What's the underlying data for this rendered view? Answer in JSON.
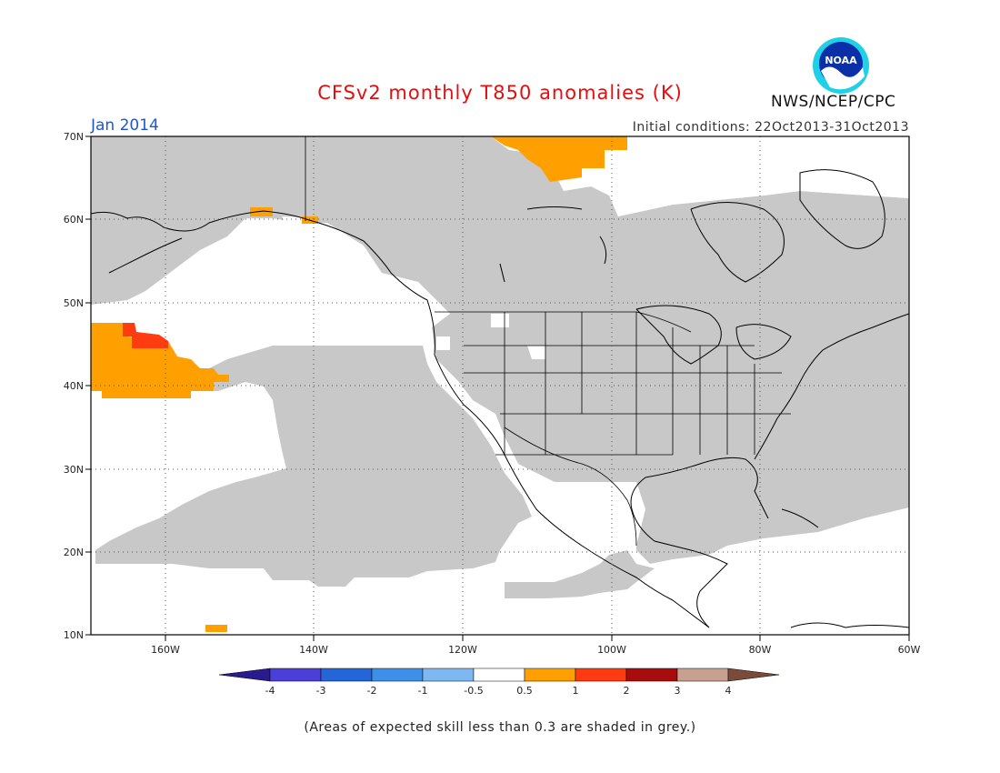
{
  "header": {
    "title": "CFSv2 monthly T850 anomalies (K)",
    "month": "Jan 2014",
    "initial_conditions": "Initial conditions: 22Oct2013-31Oct2013",
    "agency": "NWS/NCEP/CPC",
    "logo_text": "NOAA"
  },
  "map": {
    "lat_labels": [
      "70N",
      "60N",
      "50N",
      "40N",
      "30N",
      "20N",
      "10N"
    ],
    "lon_labels": [
      "160W",
      "140W",
      "120W",
      "100W",
      "80W",
      "60W"
    ],
    "lat_range": [
      10,
      70
    ],
    "lon_range": [
      -170,
      -60
    ],
    "gridlines": "dotted",
    "skill_mask_color": "#c8c8c8"
  },
  "colorbar": {
    "labels": [
      "-4",
      "-3",
      "-2",
      "-1",
      "-0.5",
      "0.5",
      "1",
      "2",
      "3",
      "4"
    ],
    "colors": [
      "#2a1a8f",
      "#4a3fd6",
      "#2466d8",
      "#3d8fe8",
      "#7fb7f0",
      "#ffffff",
      "#ff9f00",
      "#ff3b10",
      "#a80d0d",
      "#c8a090",
      "#7a4a3a"
    ]
  },
  "footer": {
    "note": "(Areas of expected skill less than 0.3 are shaded in grey.)"
  }
}
